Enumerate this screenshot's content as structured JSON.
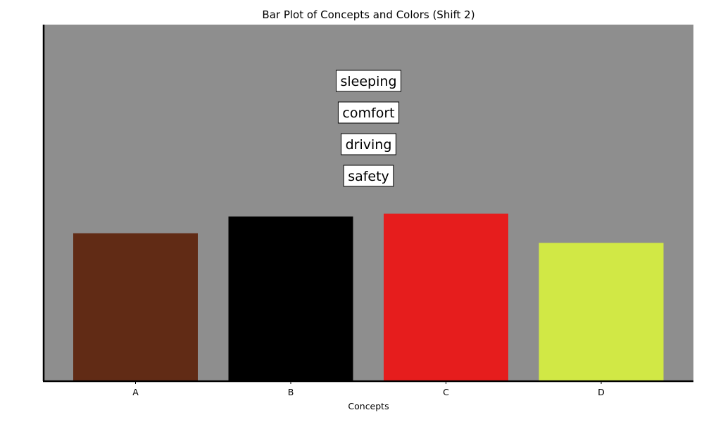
{
  "chart_data": {
    "type": "bar",
    "title": "Bar Plot of Concepts and Colors (Shift 2)",
    "xlabel": "Concepts",
    "ylabel": "",
    "categories": [
      "A",
      "B",
      "C",
      "D"
    ],
    "values": [
      0.415,
      0.462,
      0.47,
      0.388
    ],
    "ylim": [
      0,
      1
    ],
    "bar_colors": [
      "#612b15",
      "#000000",
      "#e61d1d",
      "#d1e845"
    ],
    "plot_background": "#8e8e8e",
    "grid": false,
    "y_ticks_visible": false,
    "annotations": [
      "sleeping",
      "comfort",
      "driving",
      "safety"
    ]
  }
}
